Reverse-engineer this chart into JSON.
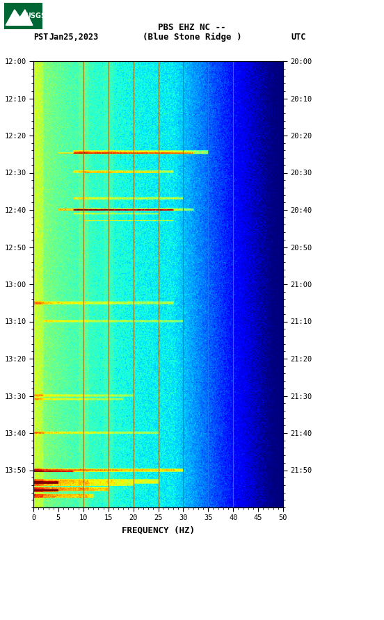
{
  "title_line1": "PBS EHZ NC --",
  "title_line2": "(Blue Stone Ridge )",
  "date_label": "Jan25,2023",
  "left_tz": "PST",
  "right_tz": "UTC",
  "left_times": [
    "12:00",
    "12:10",
    "12:20",
    "12:30",
    "12:40",
    "12:50",
    "13:00",
    "13:10",
    "13:20",
    "13:30",
    "13:40",
    "13:50"
  ],
  "right_times": [
    "20:00",
    "20:10",
    "20:20",
    "20:30",
    "20:40",
    "20:50",
    "21:00",
    "21:10",
    "21:20",
    "21:30",
    "21:40",
    "21:50"
  ],
  "freq_min": 0,
  "freq_max": 50,
  "freq_ticks": [
    0,
    5,
    10,
    15,
    20,
    25,
    30,
    35,
    40,
    45,
    50
  ],
  "xlabel": "FREQUENCY (HZ)",
  "n_time": 600,
  "n_freq": 500,
  "vline_freqs": [
    10,
    15,
    20,
    25,
    30,
    35,
    40
  ],
  "vline_color": "#996600",
  "background_color": "#ffffff",
  "fig_width": 5.52,
  "fig_height": 8.92,
  "dpi": 100
}
